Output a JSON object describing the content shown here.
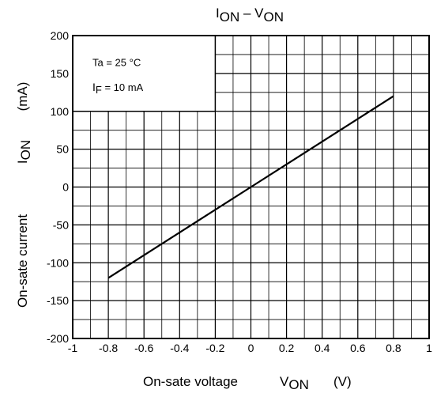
{
  "chart_data": {
    "type": "line",
    "title": {
      "main_1": "I",
      "sub_1": "ON",
      "dash": " – ",
      "main_2": "V",
      "sub_2": "ON"
    },
    "xlabel": {
      "text": "On-sate voltage",
      "symbol": "V",
      "symbol_sub": "ON",
      "unit": "(V)"
    },
    "ylabel": {
      "text": "On-sate current",
      "symbol": "I",
      "symbol_sub": "ON",
      "unit": "(mA)"
    },
    "conditions": {
      "ta": "Ta = 25 °C",
      "if_main": "I",
      "if_sub": "F",
      "if_rest": " = 10 mA"
    },
    "xlim": [
      -1,
      1
    ],
    "ylim": [
      -200,
      200
    ],
    "x_ticks": [
      -1,
      -0.8,
      -0.6,
      -0.4,
      -0.2,
      0,
      0.2,
      0.4,
      0.6,
      0.8,
      1
    ],
    "x_tick_labels": [
      "-1",
      "-0.8",
      "-0.6",
      "-0.4",
      "-0.2",
      "0",
      "0.2",
      "0.4",
      "0.6",
      "0.8",
      "1"
    ],
    "y_ticks": [
      200,
      150,
      100,
      50,
      0,
      -50,
      -100,
      -150,
      -200
    ],
    "y_tick_labels": [
      "200",
      "150",
      "100",
      "50",
      "0",
      "-50",
      "-100",
      "-150",
      "-200"
    ],
    "grid": true,
    "minor_grid_divisions": 2,
    "series": [
      {
        "x": [
          -0.8,
          0,
          0.8
        ],
        "y": [
          -120,
          0,
          120
        ],
        "color": "#000000"
      }
    ]
  }
}
